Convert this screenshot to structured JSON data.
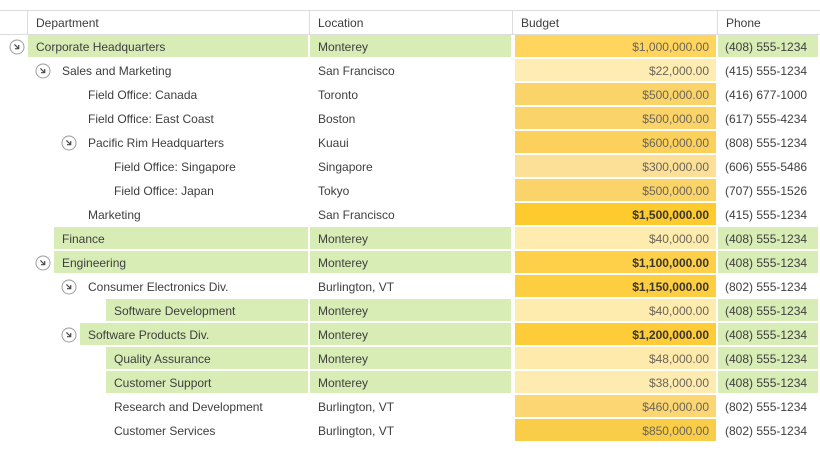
{
  "colors": {
    "highlight_green": "#D8ECB6",
    "header_border": "#DCDCDC",
    "text": "#3E3E3E",
    "budget_text": "#6B655A",
    "budget_text_bold": "#3A362F",
    "expander_circle": "#9B9B9B",
    "expander_arrow": "#4A4A4A"
  },
  "table": {
    "columns": [
      {
        "label": "Department"
      },
      {
        "label": "Location"
      },
      {
        "label": "Budget"
      },
      {
        "label": "Phone"
      }
    ],
    "rows": [
      {
        "department": "Corporate Headquarters",
        "level": 0,
        "expandable": true,
        "location": "Monterey",
        "highlighted": true,
        "budget": "$1,000,000.00",
        "budget_bg": "#FFD55E",
        "budget_bold": false,
        "phone": "(408) 555-1234"
      },
      {
        "department": "Sales and Marketing",
        "level": 1,
        "expandable": true,
        "location": "San Francisco",
        "highlighted": false,
        "budget": "$22,000.00",
        "budget_bg": "#FEECB2",
        "budget_bold": false,
        "phone": "(415) 555-1234"
      },
      {
        "department": "Field Office: Canada",
        "level": 2,
        "expandable": false,
        "location": "Toronto",
        "highlighted": false,
        "budget": "$500,000.00",
        "budget_bg": "#FBD469",
        "budget_bold": false,
        "phone": "(416) 677-1000"
      },
      {
        "department": "Field Office: East Coast",
        "level": 2,
        "expandable": false,
        "location": "Boston",
        "highlighted": false,
        "budget": "$500,000.00",
        "budget_bg": "#FBD469",
        "budget_bold": false,
        "phone": "(617) 555-4234"
      },
      {
        "department": "Pacific Rim Headquarters",
        "level": 2,
        "expandable": true,
        "location": "Kuaui",
        "highlighted": false,
        "budget": "$600,000.00",
        "budget_bg": "#FBD15C",
        "budget_bold": false,
        "phone": "(808) 555-1234"
      },
      {
        "department": "Field Office: Singapore",
        "level": 3,
        "expandable": false,
        "location": "Singapore",
        "highlighted": false,
        "budget": "$300,000.00",
        "budget_bg": "#FCE097",
        "budget_bold": false,
        "phone": "(606) 555-5486"
      },
      {
        "department": "Field Office: Japan",
        "level": 3,
        "expandable": false,
        "location": "Tokyo",
        "highlighted": false,
        "budget": "$500,000.00",
        "budget_bg": "#FBD469",
        "budget_bold": false,
        "phone": "(707) 555-1526"
      },
      {
        "department": "Marketing",
        "level": 2,
        "expandable": false,
        "location": "San Francisco",
        "highlighted": false,
        "budget": "$1,500,000.00",
        "budget_bg": "#FECB2F",
        "budget_bold": true,
        "phone": "(415) 555-1234"
      },
      {
        "department": "Finance",
        "level": 1,
        "expandable": false,
        "location": "Monterey",
        "highlighted": true,
        "budget": "$40,000.00",
        "budget_bg": "#FEEBAE",
        "budget_bold": false,
        "phone": "(408) 555-1234"
      },
      {
        "department": "Engineering",
        "level": 1,
        "expandable": true,
        "location": "Monterey",
        "highlighted": true,
        "budget": "$1,100,000.00",
        "budget_bg": "#FED04A",
        "budget_bold": true,
        "phone": "(408) 555-1234"
      },
      {
        "department": "Consumer Electronics Div.",
        "level": 2,
        "expandable": true,
        "location": "Burlington, VT",
        "highlighted": false,
        "budget": "$1,150,000.00",
        "budget_bg": "#FECE41",
        "budget_bold": true,
        "phone": "(802) 555-1234"
      },
      {
        "department": "Software Development",
        "level": 3,
        "expandable": false,
        "location": "Monterey",
        "highlighted": true,
        "budget": "$40,000.00",
        "budget_bg": "#FEEBAE",
        "budget_bold": false,
        "phone": "(408) 555-1234"
      },
      {
        "department": "Software Products Div.",
        "level": 2,
        "expandable": true,
        "location": "Monterey",
        "highlighted": true,
        "budget": "$1,200,000.00",
        "budget_bg": "#FECC38",
        "budget_bold": true,
        "phone": "(408) 555-1234"
      },
      {
        "department": "Quality Assurance",
        "level": 3,
        "expandable": false,
        "location": "Monterey",
        "highlighted": true,
        "budget": "$48,000.00",
        "budget_bg": "#FEEAAA",
        "budget_bold": false,
        "phone": "(408) 555-1234"
      },
      {
        "department": "Customer Support",
        "level": 3,
        "expandable": false,
        "location": "Monterey",
        "highlighted": true,
        "budget": "$38,000.00",
        "budget_bg": "#FEEBAF",
        "budget_bold": false,
        "phone": "(408) 555-1234"
      },
      {
        "department": "Research and Development",
        "level": 3,
        "expandable": false,
        "location": "Burlington, VT",
        "highlighted": false,
        "budget": "$460,000.00",
        "budget_bg": "#FBD672",
        "budget_bold": false,
        "phone": "(802) 555-1234"
      },
      {
        "department": "Customer Services",
        "level": 3,
        "expandable": false,
        "location": "Burlington, VT",
        "highlighted": false,
        "budget": "$850,000.00",
        "budget_bg": "#FACD49",
        "budget_bold": false,
        "phone": "(802) 555-1234"
      }
    ]
  }
}
